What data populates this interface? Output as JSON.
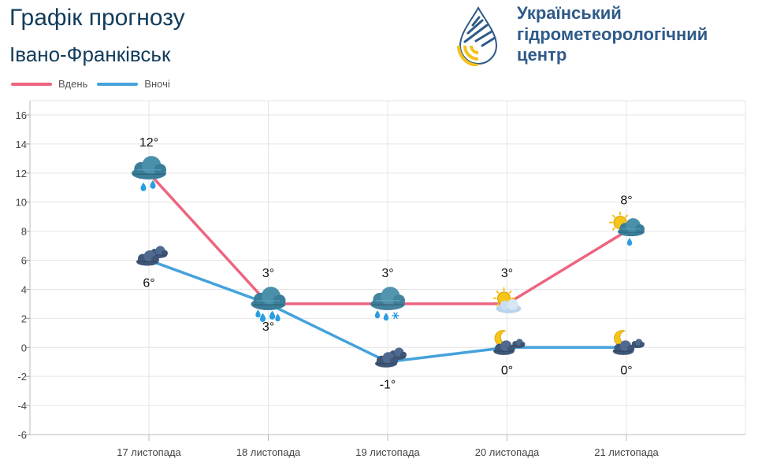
{
  "header": {
    "title": "Графік прогнозу",
    "city": "Івано-Франківськ"
  },
  "logo": {
    "line1": "Український",
    "line2": "гідрометеорологічний",
    "line3": "центр"
  },
  "colors": {
    "day": "#ee6480",
    "night": "#45a2dc",
    "brand": "#2f5a88",
    "grid": "#e4e4e4"
  },
  "chart_data": {
    "type": "line",
    "categories": [
      "17 листопада",
      "18 листопада",
      "19 листопада",
      "20 листопада",
      "21 листопада"
    ],
    "series": [
      {
        "name": "Вдень",
        "values": [
          12,
          3,
          3,
          3,
          8
        ],
        "labels": [
          "12°",
          "3°",
          "3°",
          "3°",
          "8°"
        ],
        "icons": [
          "rain-cloud-icon",
          "rain-cloud-icon",
          "sleet-cloud-icon",
          "sun-cloud-icon",
          "sun-rain-cloud-icon"
        ]
      },
      {
        "name": "Вночі",
        "values": [
          6,
          3,
          -1,
          0,
          0
        ],
        "labels": [
          "6°",
          "3°",
          "-1°",
          "0°",
          "0°"
        ],
        "icons": [
          "clouds-icon",
          "rain-cloud-icon",
          "clouds-icon",
          "moon-cloud-icon",
          "moon-cloud-icon"
        ]
      }
    ],
    "ylim": [
      -6,
      16
    ],
    "yticks": [
      16,
      14,
      12,
      10,
      8,
      6,
      4,
      2,
      0,
      -2,
      -4,
      -6
    ],
    "title": "",
    "xlabel": "",
    "ylabel": "",
    "grid": true,
    "legend": "top-left"
  }
}
